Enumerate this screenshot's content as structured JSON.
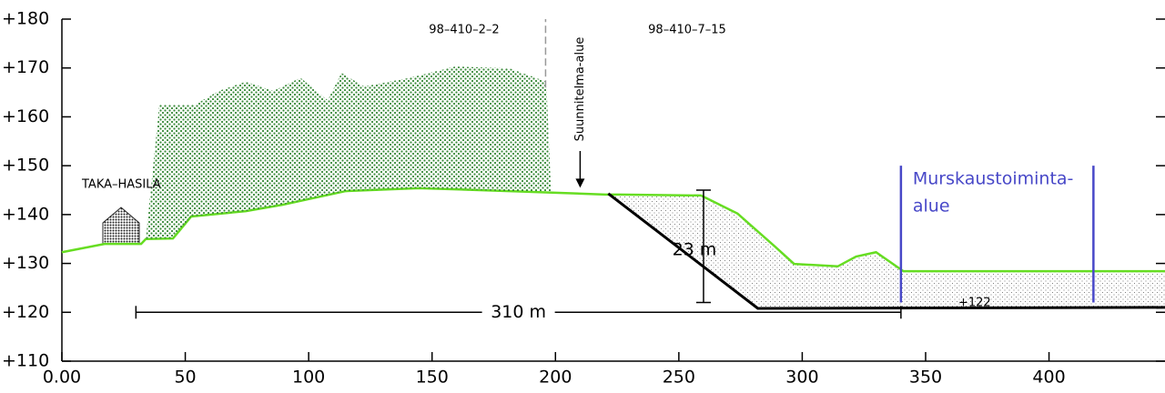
{
  "chart_data": {
    "type": "line",
    "xlim": [
      0,
      447
    ],
    "ylim": [
      110,
      180
    ],
    "xticks": [
      {
        "value": 0,
        "label": "0.00"
      },
      50,
      100,
      150,
      200,
      250,
      300,
      350,
      400
    ],
    "yticks": [
      {
        "value": 110,
        "label": "+110"
      },
      {
        "value": 120,
        "label": "+120"
      },
      {
        "value": 130,
        "label": "+130"
      },
      {
        "value": 140,
        "label": "+140"
      },
      {
        "value": 150,
        "label": "+150"
      },
      {
        "value": 160,
        "label": "+160"
      },
      {
        "value": 170,
        "label": "+170"
      },
      {
        "value": 180,
        "label": "+180"
      }
    ],
    "series": [
      {
        "kind": "line",
        "color": "#66dd22",
        "x": [
          0,
          17.3,
          32.1,
          34,
          45,
          52.4,
          74.5,
          89.3,
          115,
          144.6,
          181.5,
          220.3,
          225.8,
          259,
          273.8,
          288.6,
          296.7,
          314.4,
          321.8,
          329.9,
          341,
          447
        ],
        "values": [
          132.3,
          134,
          134,
          135,
          135.1,
          139.6,
          140.7,
          142,
          144.8,
          145.4,
          144.8,
          144.1,
          144.1,
          143.9,
          140.2,
          133.6,
          129.9,
          129.4,
          131.4,
          132.3,
          128.4,
          128.4
        ]
      },
      {
        "kind": "line",
        "color": "#000000",
        "x": [
          221.4,
          282,
          447
        ],
        "values": [
          144.3,
          120.8,
          121
        ]
      },
      {
        "kind": "area",
        "color": "#3a8a3a",
        "x": [
          34,
          39.5,
          54,
          63.5,
          74.5,
          85.6,
          96.7,
          107.7,
          113.3,
          122.5,
          141,
          159.4,
          181.5,
          196.3,
          198.2
        ],
        "values": [
          135,
          162.5,
          162.5,
          165.3,
          167.2,
          165.3,
          168,
          163.4,
          169,
          166.2,
          168,
          170.3,
          169.9,
          167.2,
          144.8
        ]
      }
    ],
    "labels": [
      {
        "text": "98–410–2–2"
      },
      {
        "text": "98–410–7–15"
      },
      {
        "text": "TAKA–HASILA"
      },
      {
        "text": "+122"
      }
    ],
    "divider": {
      "x": 196,
      "y": [
        166,
        180
      ],
      "color": "#999999"
    },
    "boundary": {
      "text": "Suunnitelma-alue",
      "x": 210,
      "y": 145.5
    },
    "dimensions": [
      {
        "text": "23 m",
        "x": 260,
        "y": [
          122,
          145
        ]
      },
      {
        "text": "310 m",
        "x": [
          30,
          340
        ],
        "y": 120
      }
    ],
    "zone": {
      "text": [
        "Murskaustoiminta-",
        "alue"
      ],
      "color": "#4848c8",
      "x": [
        340,
        418
      ],
      "y": [
        122,
        150
      ]
    }
  }
}
